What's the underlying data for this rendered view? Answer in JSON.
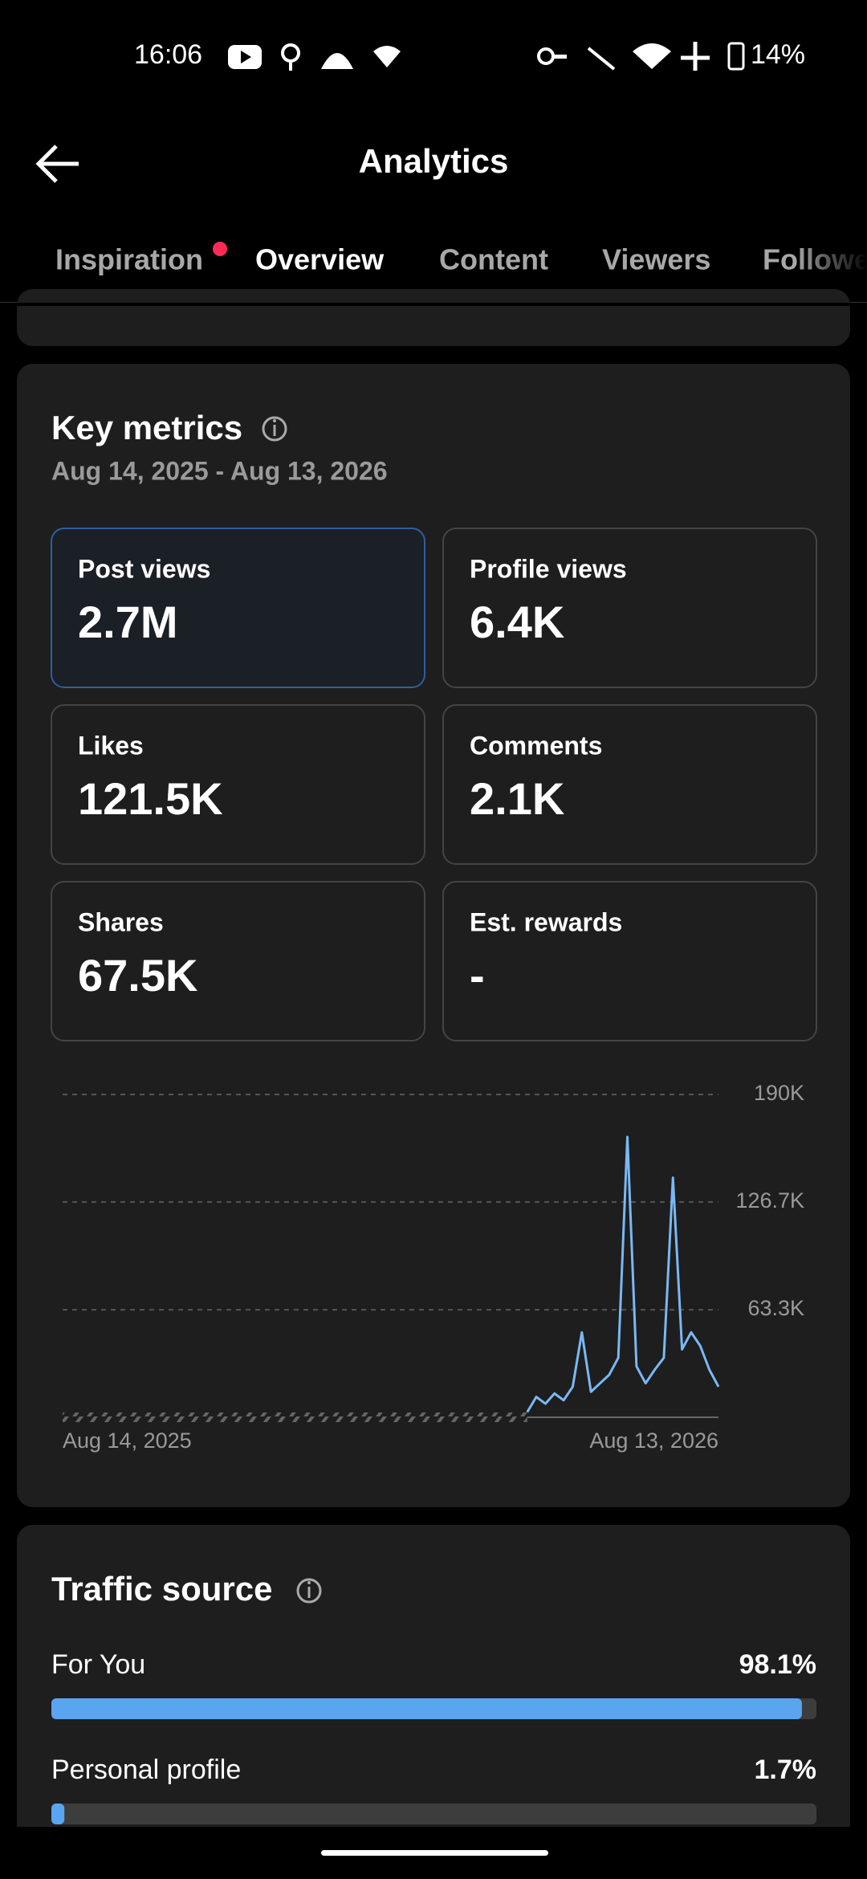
{
  "status_bar": {
    "time": "16:06",
    "battery": "14%"
  },
  "header": {
    "title": "Analytics"
  },
  "tabs": [
    "Inspiration",
    "Overview",
    "Content",
    "Viewers",
    "Followers"
  ],
  "key_metrics": {
    "title": "Key metrics",
    "date_range": "Aug 14, 2025 - Aug 13, 2026",
    "cards": [
      {
        "label": "Post views",
        "value": "2.7M"
      },
      {
        "label": "Profile views",
        "value": "6.4K"
      },
      {
        "label": "Likes",
        "value": "121.5K"
      },
      {
        "label": "Comments",
        "value": "2.1K"
      },
      {
        "label": "Shares",
        "value": "67.5K"
      },
      {
        "label": "Est. rewards",
        "value": "-"
      }
    ]
  },
  "chart_data": [
    {
      "type": "line",
      "categories": [
        "Aug 14, 2025",
        null,
        null,
        null,
        null,
        null,
        null,
        null,
        null,
        null,
        null,
        null,
        null,
        null,
        null,
        null,
        null,
        null,
        null,
        null,
        null,
        null,
        null,
        null,
        null,
        null,
        null,
        null,
        null,
        null,
        null,
        null,
        null,
        null,
        null,
        null,
        null,
        null,
        null,
        null,
        null,
        null,
        null,
        null,
        null,
        null,
        null,
        null,
        null,
        null,
        null,
        null,
        null,
        null,
        null,
        null,
        null,
        null,
        null,
        null,
        null,
        null,
        null,
        null,
        null,
        null,
        null,
        null,
        null,
        null,
        null,
        null,
        "Aug 13, 2026"
      ],
      "series": [
        {
          "color": "#7ab8f5",
          "values": [
            null,
            null,
            null,
            null,
            null,
            null,
            null,
            null,
            null,
            null,
            null,
            null,
            null,
            null,
            null,
            null,
            null,
            null,
            null,
            null,
            null,
            null,
            null,
            null,
            null,
            null,
            null,
            null,
            null,
            null,
            null,
            null,
            null,
            null,
            null,
            null,
            null,
            null,
            null,
            null,
            null,
            null,
            null,
            null,
            null,
            null,
            null,
            null,
            null,
            null,
            null,
            3000,
            12000,
            8000,
            14000,
            10000,
            18000,
            50000,
            15000,
            20000,
            25000,
            35000,
            165000,
            30000,
            20000,
            28000,
            35000,
            141000,
            40000,
            50000,
            42000,
            28000,
            18000
          ]
        }
      ],
      "ylim": [
        0,
        190000
      ],
      "yticks": [
        {
          "value": 63300,
          "label": "63.3K"
        },
        {
          "value": 126700,
          "label": "126.7K"
        },
        {
          "value": 190000,
          "label": "190K"
        }
      ],
      "grid": true
    },
    {
      "type": "hbar",
      "title": "Traffic source",
      "categories": [
        "For You",
        "Personal profile"
      ],
      "values": [
        98.1,
        1.7
      ],
      "value_labels": [
        "98.1%",
        "1.7%"
      ],
      "xlim": [
        0,
        100
      ],
      "color": "#5aa5f0"
    }
  ]
}
